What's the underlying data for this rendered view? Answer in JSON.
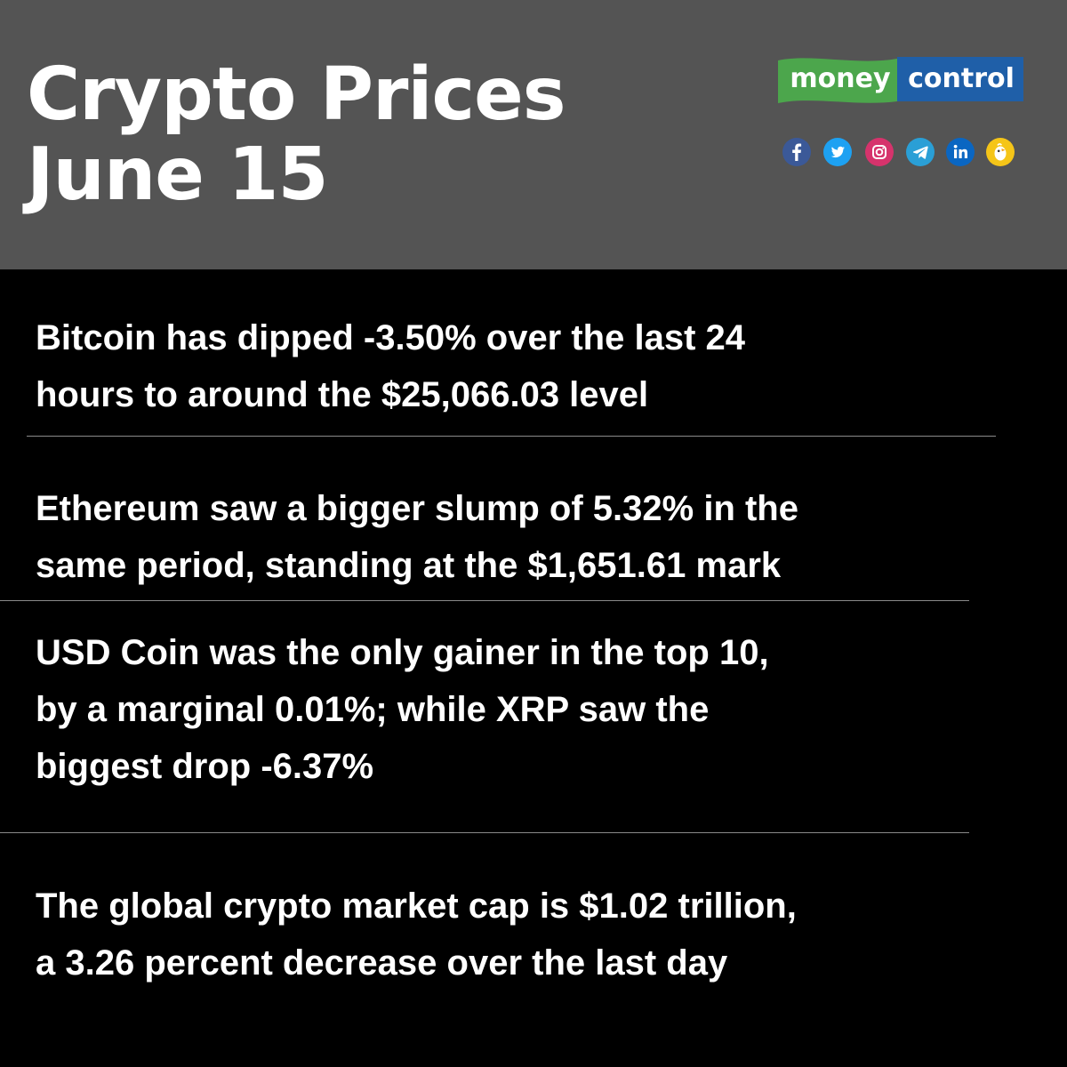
{
  "header": {
    "title_line1": "Crypto Prices",
    "title_line2": "June 15",
    "background_color": "#545454"
  },
  "logo": {
    "part1": "money",
    "part2": "control",
    "part1_color": "#4ca64c",
    "part2_color": "#1f5fa8"
  },
  "social_icons": [
    {
      "name": "facebook-icon",
      "color": "#3b5998"
    },
    {
      "name": "twitter-icon",
      "color": "#1da1f2"
    },
    {
      "name": "instagram-icon",
      "color": "#d6336c"
    },
    {
      "name": "telegram-icon",
      "color": "#2a9fd6"
    },
    {
      "name": "linkedin-icon",
      "color": "#0a66c2"
    },
    {
      "name": "koo-icon",
      "color": "#f5c518"
    }
  ],
  "points": [
    {
      "lines": [
        "Bitcoin has dipped -3.50% over the last 24",
        "hours to around the $25,066.03 level"
      ]
    },
    {
      "lines": [
        "Ethereum saw a bigger slump of 5.32% in the",
        "same period, standing at the $1,651.61 mark"
      ]
    },
    {
      "lines": [
        "USD Coin was the only gainer in the top 10,",
        "by a marginal 0.01%; while XRP saw the",
        "biggest drop -6.37%"
      ]
    },
    {
      "lines": [
        "The global crypto market cap is $1.02 trillion,",
        "a 3.26 percent decrease over the last day"
      ]
    }
  ]
}
